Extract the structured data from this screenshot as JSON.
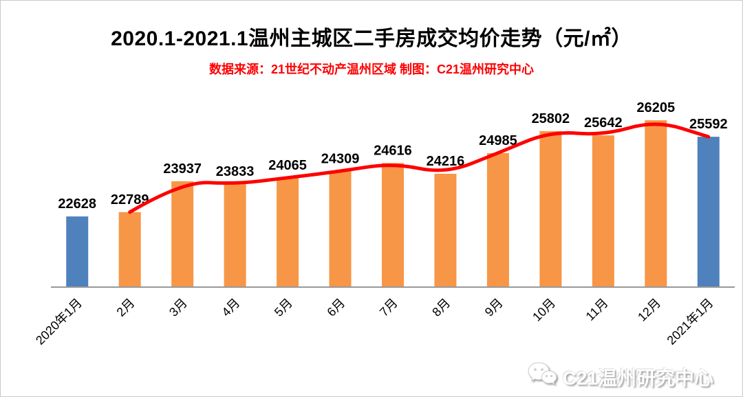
{
  "header": {
    "title": "2020.1-2021.1温州主城区二手房成交均价走势（元/㎡）",
    "subtitle": "数据来源：21世纪不动产温州区域  制图：C21温州研究中心",
    "subtitle_color": "#fe0000",
    "title_color": "#000000"
  },
  "watermark": {
    "icon": "wechat-icon",
    "text": "C21温州研究中心"
  },
  "chart_data": {
    "type": "bar",
    "title": "2020.1-2021.1温州主城区二手房成交均价走势（元/㎡）",
    "xlabel": "",
    "ylabel": "",
    "ylim": [
      20000,
      27000
    ],
    "grid": false,
    "legend": null,
    "data_labels": true,
    "categories": [
      "2020年1月",
      "2月",
      "3月",
      "4月",
      "5月",
      "6月",
      "7月",
      "8月",
      "9月",
      "10月",
      "11月",
      "12月",
      "2021年1月"
    ],
    "values": [
      22628,
      22789,
      23937,
      23833,
      24065,
      24309,
      24616,
      24216,
      24985,
      25802,
      25642,
      26205,
      25592
    ],
    "bar_colors": [
      "#4F81BD",
      "#F79646",
      "#F79646",
      "#F79646",
      "#F79646",
      "#F79646",
      "#F79646",
      "#F79646",
      "#F79646",
      "#F79646",
      "#F79646",
      "#F79646",
      "#4F81BD"
    ],
    "overlay_line": {
      "type": "line",
      "color": "#fe0000",
      "width": 5,
      "smoothed": true,
      "start_category_index": 1,
      "values": [
        22789,
        23937,
        23833,
        24065,
        24309,
        24616,
        24216,
        24985,
        25802,
        25642,
        26205,
        25592
      ]
    },
    "axis_line_color": "#999999",
    "label_color": "#000000"
  }
}
